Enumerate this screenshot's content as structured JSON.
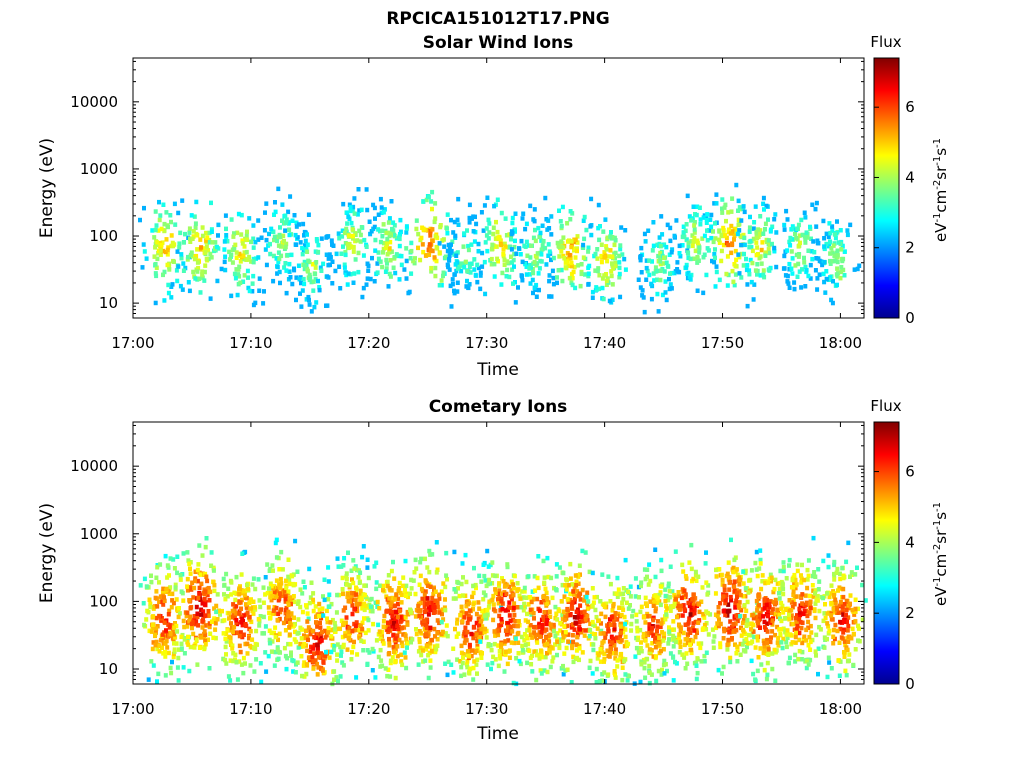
{
  "figure_title": "RPCICA151012T17.PNG",
  "chart_data": [
    {
      "type": "heatmap",
      "title": "Solar Wind Ions",
      "xlabel": "Time",
      "ylabel": "Energy (eV)",
      "x_range": [
        "17:00",
        "18:02"
      ],
      "xticks": [
        "17:00",
        "17:10",
        "17:20",
        "17:30",
        "17:40",
        "17:50",
        "18:00"
      ],
      "y_scale": "log",
      "ylim": [
        6,
        45000
      ],
      "yticks": [
        10,
        100,
        1000,
        10000
      ],
      "colorbar": {
        "label": "Flux",
        "unit": "eV-1cm-2sr-1s-1",
        "range": [
          0,
          7.4
        ],
        "ticks": [
          0,
          2,
          4,
          6
        ]
      },
      "bursts": [
        {
          "t": 2.5,
          "e": 65,
          "peak": 5.2
        },
        {
          "t": 5.5,
          "e": 70,
          "peak": 5.2
        },
        {
          "t": 9.0,
          "e": 60,
          "peak": 4.8
        },
        {
          "t": 12.5,
          "e": 80,
          "peak": 4.3
        },
        {
          "t": 15.0,
          "e": 35,
          "peak": 4.2
        },
        {
          "t": 18.5,
          "e": 80,
          "peak": 4.6
        },
        {
          "t": 21.5,
          "e": 70,
          "peak": 4.6
        },
        {
          "t": 25.0,
          "e": 80,
          "peak": 5.8
        },
        {
          "t": 28.0,
          "e": 55,
          "peak": 4.0
        },
        {
          "t": 31.0,
          "e": 70,
          "peak": 5.0
        },
        {
          "t": 34.0,
          "e": 60,
          "peak": 4.2
        },
        {
          "t": 37.0,
          "e": 60,
          "peak": 5.4
        },
        {
          "t": 40.0,
          "e": 45,
          "peak": 5.0
        },
        {
          "t": 44.5,
          "e": 40,
          "peak": 4.2
        },
        {
          "t": 47.5,
          "e": 80,
          "peak": 4.6
        },
        {
          "t": 50.5,
          "e": 80,
          "peak": 5.6
        },
        {
          "t": 53.0,
          "e": 70,
          "peak": 4.8
        },
        {
          "t": 56.5,
          "e": 70,
          "peak": 4.4
        },
        {
          "t": 59.5,
          "e": 45,
          "peak": 4.3
        }
      ]
    },
    {
      "type": "heatmap",
      "title": "Cometary Ions",
      "xlabel": "Time",
      "ylabel": "Energy (eV)",
      "x_range": [
        "17:00",
        "18:02"
      ],
      "xticks": [
        "17:00",
        "17:10",
        "17:20",
        "17:30",
        "17:40",
        "17:50",
        "18:00"
      ],
      "y_scale": "log",
      "ylim": [
        6,
        45000
      ],
      "yticks": [
        10,
        100,
        1000,
        10000
      ],
      "colorbar": {
        "label": "Flux",
        "unit": "eV-1cm-2sr-1s-1",
        "range": [
          0,
          7.4
        ],
        "ticks": [
          0,
          2,
          4,
          6
        ]
      },
      "bursts": [
        {
          "t": 2.5,
          "e": 60,
          "peak": 6.6
        },
        {
          "t": 5.5,
          "e": 80,
          "peak": 7.0
        },
        {
          "t": 9.0,
          "e": 50,
          "peak": 6.6
        },
        {
          "t": 12.5,
          "e": 80,
          "peak": 6.4
        },
        {
          "t": 15.5,
          "e": 25,
          "peak": 6.8
        },
        {
          "t": 18.5,
          "e": 60,
          "peak": 6.4
        },
        {
          "t": 22.0,
          "e": 50,
          "peak": 6.8
        },
        {
          "t": 25.0,
          "e": 70,
          "peak": 6.8
        },
        {
          "t": 28.5,
          "e": 40,
          "peak": 6.6
        },
        {
          "t": 31.5,
          "e": 60,
          "peak": 6.8
        },
        {
          "t": 34.5,
          "e": 50,
          "peak": 6.6
        },
        {
          "t": 37.5,
          "e": 60,
          "peak": 6.8
        },
        {
          "t": 40.5,
          "e": 35,
          "peak": 6.6
        },
        {
          "t": 44.0,
          "e": 45,
          "peak": 6.4
        },
        {
          "t": 47.0,
          "e": 70,
          "peak": 6.8
        },
        {
          "t": 50.5,
          "e": 80,
          "peak": 7.0
        },
        {
          "t": 53.5,
          "e": 60,
          "peak": 6.8
        },
        {
          "t": 56.5,
          "e": 70,
          "peak": 6.6
        },
        {
          "t": 60.0,
          "e": 55,
          "peak": 6.6
        }
      ]
    }
  ]
}
